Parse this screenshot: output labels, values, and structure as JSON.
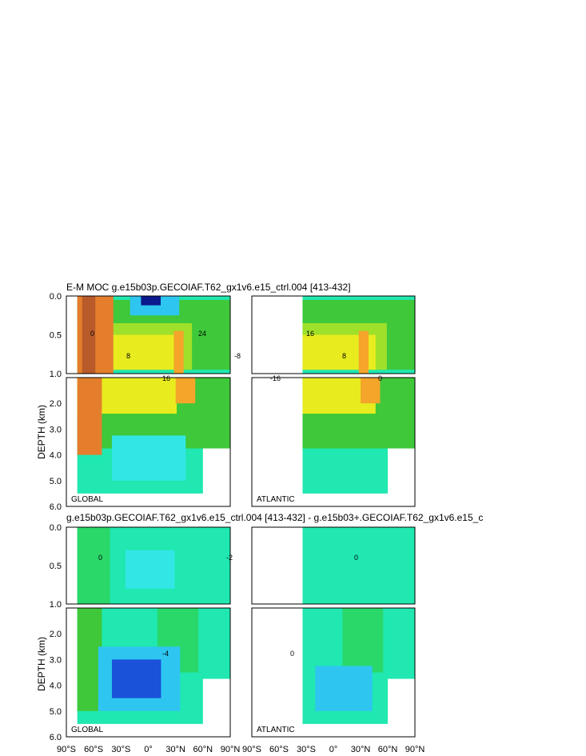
{
  "chart_data": {
    "type": "heatmap",
    "title_top": "E-M MOC  g.e15b03p.GECOIAF.T62_gx1v6.e15_ctrl.004 [413-432]",
    "title_bottom": "g.e15b03p.GECOIAF.T62_gx1v6.e15_ctrl.004 [413-432] - g.e15b03+.GECOIAF.T62_gx1v6.e15_c",
    "ylabel": "DEPTH (km)",
    "ylim_upper": [
      1.0,
      0.0
    ],
    "ylim_lower": [
      6.0,
      1.0
    ],
    "xlim_global": [
      -90,
      90
    ],
    "xlim_atlantic": [
      -90,
      90
    ],
    "depth_ticks_upper": [
      "0.0",
      "0.5",
      "1.0"
    ],
    "depth_ticks_lower": [
      "2.0",
      "3.0",
      "4.0",
      "5.0"
    ],
    "depth_tick_6": "6.0",
    "x_tick_labels": [
      "90°S",
      "60°S",
      "30°S",
      "0°",
      "30°N",
      "60°N",
      "90°N"
    ],
    "panel_labels": {
      "global": "GLOBAL",
      "atlantic": "ATLANTIC"
    },
    "contour_labels_top": [
      "0",
      "8",
      "16",
      "24",
      "-8",
      "-16",
      "16",
      "8",
      "0"
    ],
    "contour_labels_bottom": [
      "0",
      "-4",
      "-2",
      "0",
      "0"
    ],
    "colors": [
      "#0a1a8c",
      "#1a53d9",
      "#2ec6f0",
      "#33e6e6",
      "#20e8b0",
      "#2ad86a",
      "#3ec83a",
      "#9fe02a",
      "#e8ec1e",
      "#f7d21e",
      "#f4a52a",
      "#e47e2c",
      "#b85a2a",
      "#7a3a1c"
    ]
  }
}
